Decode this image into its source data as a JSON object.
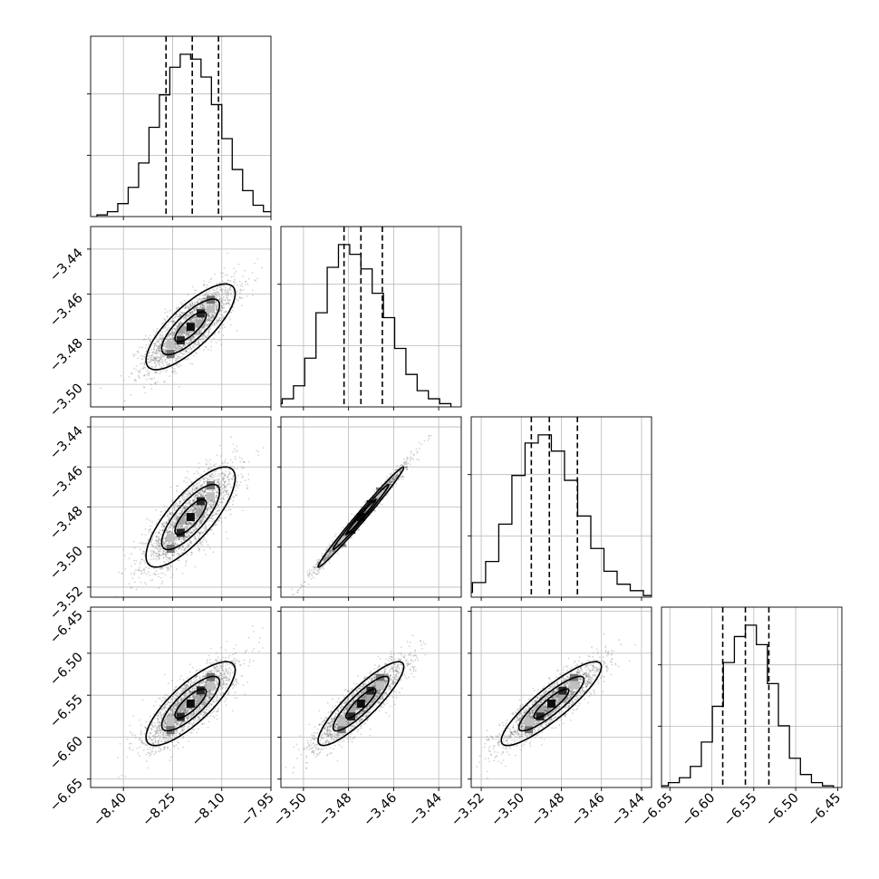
{
  "chart_data": {
    "type": "corner",
    "grid": true,
    "parameters": [
      {
        "range": [
          -8.5,
          -7.95
        ],
        "ticks": [
          -8.4,
          -8.25,
          -8.1,
          -7.95
        ],
        "tick_labels": [
          "−8.40",
          "−8.25",
          "−8.10",
          "−7.95"
        ],
        "mean": -8.195,
        "sd": 0.068,
        "quantiles": [
          -8.27,
          -8.19,
          -8.11
        ]
      },
      {
        "range": [
          -3.51,
          -3.43
        ],
        "ticks": [
          -3.5,
          -3.48,
          -3.46,
          -3.44
        ],
        "tick_labels": [
          "−3.50",
          "−3.48",
          "−3.46",
          "−3.44"
        ],
        "mean": -3.4745,
        "sd": 0.0095,
        "quantiles": [
          -3.482,
          -3.4745,
          -3.465
        ]
      },
      {
        "range": [
          -3.525,
          -3.435
        ],
        "ticks": [
          -3.52,
          -3.5,
          -3.48,
          -3.46,
          -3.44
        ],
        "tick_labels": [
          "−3.52",
          "−3.50",
          "−3.48",
          "−3.46",
          "−3.44"
        ],
        "mean": -3.485,
        "sd": 0.0125,
        "quantiles": [
          -3.495,
          -3.486,
          -3.472
        ]
      },
      {
        "range": [
          -6.66,
          -6.445
        ],
        "ticks": [
          -6.65,
          -6.6,
          -6.55,
          -6.5,
          -6.45
        ],
        "tick_labels": [
          "−6.65",
          "−6.60",
          "−6.55",
          "−6.50",
          "−6.45"
        ],
        "mean": -6.56,
        "sd": 0.025,
        "quantiles": [
          -6.587,
          -6.56,
          -6.532
        ]
      }
    ],
    "correlations": {
      "1-0": 0.78,
      "2-0": 0.78,
      "2-1": 0.99,
      "3-0": 0.8,
      "3-1": 0.88,
      "3-2": 0.88
    },
    "histograms": [
      [
        1,
        3,
        8,
        18,
        33,
        55,
        75,
        92,
        100,
        97,
        86,
        69,
        48,
        29,
        16,
        7,
        3,
        1
      ],
      [
        2,
        5,
        13,
        30,
        58,
        86,
        100,
        94,
        85,
        70,
        55,
        36,
        20,
        10,
        5,
        2
      ],
      [
        1,
        3,
        9,
        22,
        45,
        75,
        95,
        100,
        90,
        72,
        50,
        30,
        16,
        8,
        4,
        1
      ],
      [
        1,
        3,
        6,
        13,
        28,
        50,
        77,
        93,
        100,
        88,
        64,
        38,
        18,
        8,
        3,
        1
      ]
    ],
    "n_scatter_points": 2200
  }
}
